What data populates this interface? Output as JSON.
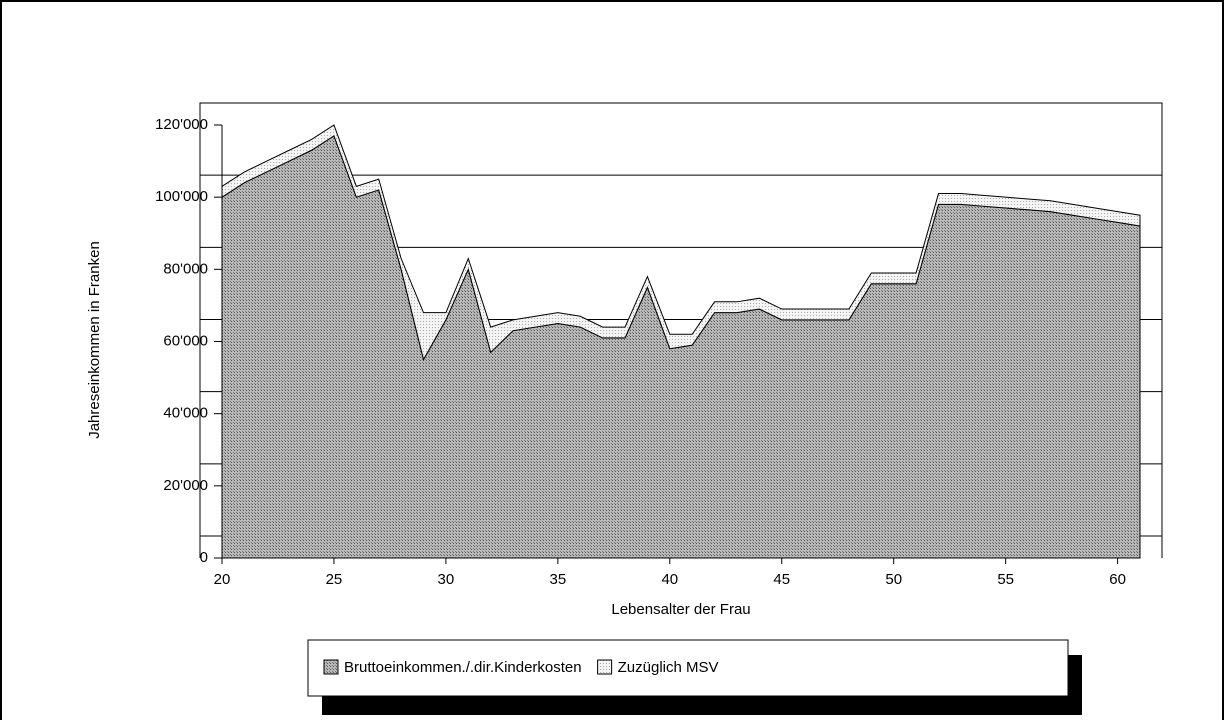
{
  "chart_data": {
    "type": "area",
    "x_label": "Lebensalter der Frau",
    "y_label": "Jahreseinkommen in Franken",
    "x": [
      20,
      21,
      22,
      23,
      24,
      25,
      26,
      27,
      28,
      29,
      30,
      31,
      32,
      33,
      34,
      35,
      36,
      37,
      38,
      39,
      40,
      41,
      42,
      43,
      44,
      45,
      46,
      47,
      48,
      49,
      50,
      51,
      52,
      53,
      54,
      55,
      56,
      57,
      58,
      59,
      60,
      61
    ],
    "xlim": [
      20,
      61
    ],
    "xticks": [
      20,
      25,
      30,
      35,
      40,
      45,
      50,
      55,
      60
    ],
    "ylim": [
      0,
      120000
    ],
    "yticks": [
      0,
      {
        "value": 20000,
        "label": "20'000"
      },
      {
        "value": 40000,
        "label": "40'000"
      },
      {
        "value": 60000,
        "label": "60'000"
      },
      {
        "value": 80000,
        "label": "80'000"
      },
      {
        "value": 100000,
        "label": "100'000"
      },
      {
        "value": 120000,
        "label": "120'000"
      }
    ],
    "grid": true,
    "stacked": true,
    "series": [
      {
        "name": "Bruttoeinkommen./.dir.Kinderkosten",
        "color": "#a8a8a8",
        "values": [
          100000,
          104000,
          107000,
          110000,
          113000,
          117000,
          100000,
          102000,
          80000,
          55000,
          66000,
          80000,
          57000,
          63000,
          64000,
          65000,
          64000,
          61000,
          61000,
          75000,
          58000,
          59000,
          68000,
          68000,
          69000,
          66000,
          66000,
          66000,
          66000,
          76000,
          76000,
          76000,
          98000,
          98000,
          97500,
          97000,
          96500,
          96000,
          95000,
          94000,
          93000,
          92000
        ]
      },
      {
        "name": "Zuzüglich MSV",
        "color": "#eeeeee",
        "values": [
          3000,
          3000,
          3000,
          3000,
          3000,
          3000,
          3000,
          3000,
          3000,
          13000,
          2000,
          3000,
          7000,
          3000,
          3000,
          3000,
          3000,
          3000,
          3000,
          3000,
          4000,
          3000,
          3000,
          3000,
          3000,
          3000,
          3000,
          3000,
          3000,
          3000,
          3000,
          3000,
          3000,
          3000,
          3000,
          3000,
          3000,
          3000,
          3000,
          3000,
          3000,
          3000
        ]
      }
    ]
  }
}
